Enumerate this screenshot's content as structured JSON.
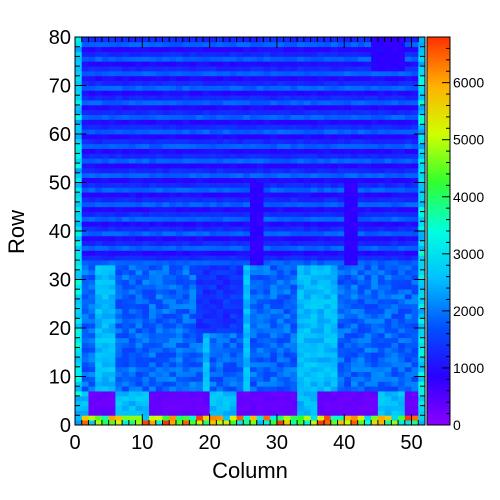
{
  "chart_data": {
    "type": "heatmap",
    "title": "",
    "xlabel": "Column",
    "ylabel": "Row",
    "xlim": [
      0,
      52
    ],
    "ylim": [
      0,
      80
    ],
    "x_ticks": [
      "0",
      "10",
      "20",
      "30",
      "40",
      "50"
    ],
    "y_ticks": [
      "0",
      "10",
      "20",
      "30",
      "40",
      "50",
      "60",
      "70",
      "80"
    ],
    "colorbar": {
      "range": [
        0,
        6800
      ],
      "ticks": [
        "0",
        "1000",
        "2000",
        "3000",
        "4000",
        "5000",
        "6000"
      ],
      "palette": [
        "#8a00ff",
        "#2a00ff",
        "#0050ff",
        "#00bfff",
        "#00ffe0",
        "#30ff30",
        "#d0ff00",
        "#ffb000",
        "#ff3000"
      ]
    },
    "cell_grid": {
      "columns": 52,
      "rows": 80
    },
    "value_model": "reconstructed",
    "band_summary": [
      {
        "rows": "0-1",
        "description": "edge row, mixed high values (~2500-6800)"
      },
      {
        "rows": "2-6",
        "description": "low blocks ~200 at columns 11-19, 24-32, 36-44; bright columns ~2500 between"
      },
      {
        "rows": "7-32",
        "description": "moderate ~1200-2600, bright vertical stripes at columns 3-5, 19-20, 25, 33-38"
      },
      {
        "rows": "33-80",
        "description": "alternating horizontal stripes ~700-1900 with edge columns ~2500-3200"
      }
    ]
  }
}
